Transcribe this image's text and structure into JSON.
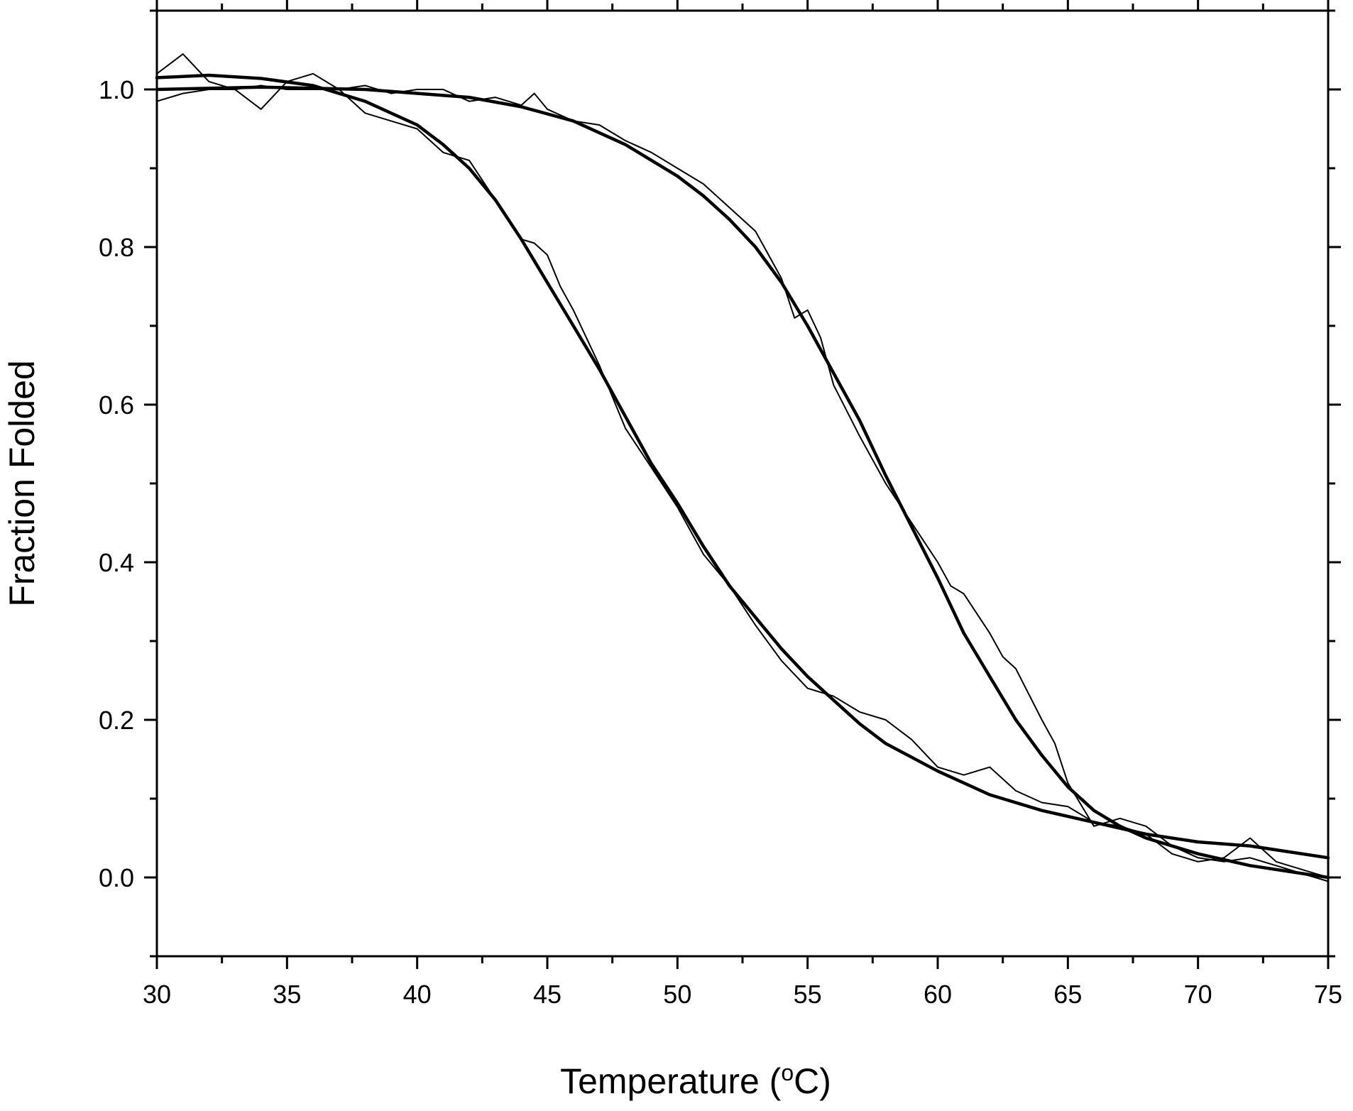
{
  "chart_data": {
    "type": "line",
    "title": "",
    "xlabel": "Temperature (",
    "xlabel_sup": "o",
    "xlabel_suffix": "C)",
    "ylabel": "Fraction Folded",
    "xlim": [
      30,
      75
    ],
    "ylim": [
      -0.1,
      1.1
    ],
    "x_ticks": [
      30,
      35,
      40,
      45,
      50,
      55,
      60,
      65,
      70,
      75
    ],
    "x_tick_labels": [
      "30",
      "35",
      "40",
      "45",
      "50",
      "55",
      "60",
      "65",
      "70",
      "75"
    ],
    "y_ticks": [
      0.0,
      0.2,
      0.4,
      0.6,
      0.8,
      1.0
    ],
    "y_tick_labels": [
      "0.0",
      "0.2",
      "0.4",
      "0.6",
      "0.8",
      "1.0"
    ],
    "grid": false,
    "legend": "none",
    "line_color": "#000000",
    "series": [
      {
        "style": "data",
        "x": [
          30,
          31,
          32,
          33,
          34,
          35,
          36,
          37,
          38,
          39,
          40,
          41,
          42,
          43,
          44,
          44.5,
          45,
          45.5,
          46,
          47,
          48,
          49,
          50,
          51,
          52,
          53,
          54,
          55,
          56,
          57,
          58,
          59,
          60,
          61,
          62,
          63,
          64,
          65,
          66,
          67,
          68,
          69,
          70,
          71,
          72,
          73,
          74,
          75
        ],
        "y": [
          1.02,
          1.045,
          1.01,
          1.0,
          0.975,
          1.01,
          1.02,
          1.0,
          0.97,
          0.96,
          0.95,
          0.92,
          0.91,
          0.86,
          0.81,
          0.805,
          0.79,
          0.75,
          0.72,
          0.65,
          0.57,
          0.52,
          0.47,
          0.41,
          0.37,
          0.32,
          0.275,
          0.24,
          0.23,
          0.21,
          0.2,
          0.175,
          0.14,
          0.13,
          0.14,
          0.11,
          0.095,
          0.09,
          0.07,
          0.065,
          0.055,
          0.03,
          0.02,
          0.025,
          0.05,
          0.02,
          0.01,
          0.0
        ]
      },
      {
        "style": "fit",
        "x": [
          30,
          32,
          34,
          36,
          38,
          40,
          41,
          42,
          43,
          44,
          45,
          46,
          47,
          48,
          49,
          50,
          51,
          52,
          53,
          54,
          55,
          56,
          57,
          58,
          60,
          62,
          64,
          66,
          68,
          70,
          72,
          75
        ],
        "y": [
          1.015,
          1.018,
          1.014,
          1.005,
          0.985,
          0.955,
          0.93,
          0.9,
          0.86,
          0.81,
          0.755,
          0.7,
          0.645,
          0.585,
          0.525,
          0.475,
          0.42,
          0.37,
          0.33,
          0.29,
          0.255,
          0.225,
          0.195,
          0.17,
          0.135,
          0.105,
          0.085,
          0.07,
          0.055,
          0.045,
          0.04,
          0.025
        ]
      },
      {
        "style": "data",
        "x": [
          30,
          31,
          32,
          33,
          34,
          35,
          36,
          37,
          38,
          39,
          40,
          41,
          42,
          43,
          44,
          44.5,
          45,
          46,
          47,
          48,
          49,
          50,
          51,
          52,
          53,
          53.5,
          54,
          54.5,
          55,
          55.5,
          56,
          57,
          58,
          59,
          60,
          60.5,
          61,
          62,
          62.5,
          63,
          64,
          64.5,
          65,
          66,
          67,
          68,
          69,
          70,
          71,
          72,
          73,
          74,
          75
        ],
        "y": [
          0.985,
          0.995,
          1.0,
          1.0,
          1.005,
          1.0,
          1.0,
          1.0,
          1.005,
          0.995,
          1.0,
          1.0,
          0.985,
          0.99,
          0.98,
          0.995,
          0.975,
          0.96,
          0.955,
          0.935,
          0.92,
          0.9,
          0.88,
          0.85,
          0.82,
          0.79,
          0.76,
          0.71,
          0.72,
          0.685,
          0.625,
          0.56,
          0.5,
          0.45,
          0.4,
          0.37,
          0.36,
          0.31,
          0.28,
          0.265,
          0.2,
          0.17,
          0.12,
          0.065,
          0.075,
          0.065,
          0.04,
          0.025,
          0.02,
          0.025,
          0.015,
          0.005,
          -0.005
        ]
      },
      {
        "style": "fit",
        "x": [
          30,
          34,
          38,
          42,
          44,
          46,
          48,
          50,
          51,
          52,
          53,
          54,
          55,
          56,
          57,
          58,
          59,
          60,
          61,
          62,
          63,
          64,
          65,
          66,
          67,
          68,
          70,
          72,
          75
        ],
        "y": [
          1.0,
          1.003,
          1.0,
          0.99,
          0.978,
          0.96,
          0.93,
          0.89,
          0.865,
          0.835,
          0.8,
          0.755,
          0.7,
          0.64,
          0.58,
          0.51,
          0.445,
          0.38,
          0.31,
          0.255,
          0.2,
          0.155,
          0.115,
          0.085,
          0.065,
          0.05,
          0.03,
          0.015,
          0.0
        ]
      }
    ]
  }
}
